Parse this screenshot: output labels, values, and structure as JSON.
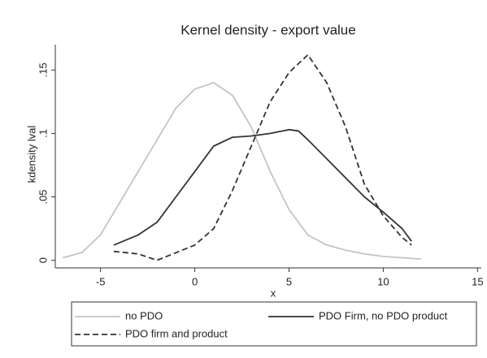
{
  "chart_data": {
    "type": "line",
    "title": "Kernel density - export value",
    "x_label": "x",
    "y_label": "kdensity lval",
    "xlim": [
      -7.4,
      15.2
    ],
    "xticks": [
      -5,
      0,
      5,
      10,
      15
    ],
    "ylim": [
      -0.006,
      0.17
    ],
    "yticks": [
      0,
      {
        "value": 0.05,
        "label": ".05"
      },
      {
        "value": 0.1,
        "label": ".1"
      },
      {
        "value": 0.15,
        "label": ".15"
      }
    ],
    "series": [
      {
        "name": "no PDO",
        "color": "#c4c4c4",
        "style": "solid",
        "x": [
          -7,
          -6,
          -5,
          -4,
          -3,
          -2,
          -1,
          0,
          1,
          2,
          3,
          4,
          5,
          6,
          7,
          8,
          9,
          10,
          11,
          12
        ],
        "values": [
          0.002,
          0.006,
          0.02,
          0.045,
          0.07,
          0.095,
          0.12,
          0.135,
          0.14,
          0.13,
          0.105,
          0.07,
          0.04,
          0.02,
          0.012,
          0.008,
          0.005,
          0.003,
          0.002,
          0.001
        ]
      },
      {
        "name": "PDO Firm, no PDO product",
        "color": "#333333",
        "style": "solid",
        "x": [
          -4.3,
          -3,
          -2,
          -1,
          0,
          1,
          2,
          3,
          4,
          5,
          5.5,
          6,
          7,
          8,
          9,
          10,
          11,
          11.5
        ],
        "values": [
          0.012,
          0.02,
          0.03,
          0.05,
          0.07,
          0.09,
          0.097,
          0.098,
          0.1,
          0.103,
          0.102,
          0.095,
          0.08,
          0.065,
          0.05,
          0.038,
          0.025,
          0.015
        ]
      },
      {
        "name": "PDO firm and product",
        "color": "#333333",
        "style": "dashed",
        "x": [
          -4.3,
          -3,
          -2,
          -1,
          0,
          1,
          2,
          3,
          4,
          5,
          5.5,
          6,
          7,
          8,
          9,
          10,
          11,
          11.5
        ],
        "values": [
          0.007,
          0.005,
          0.0,
          0.006,
          0.012,
          0.025,
          0.055,
          0.09,
          0.125,
          0.148,
          0.155,
          0.162,
          0.14,
          0.105,
          0.06,
          0.035,
          0.018,
          0.012
        ]
      }
    ]
  }
}
